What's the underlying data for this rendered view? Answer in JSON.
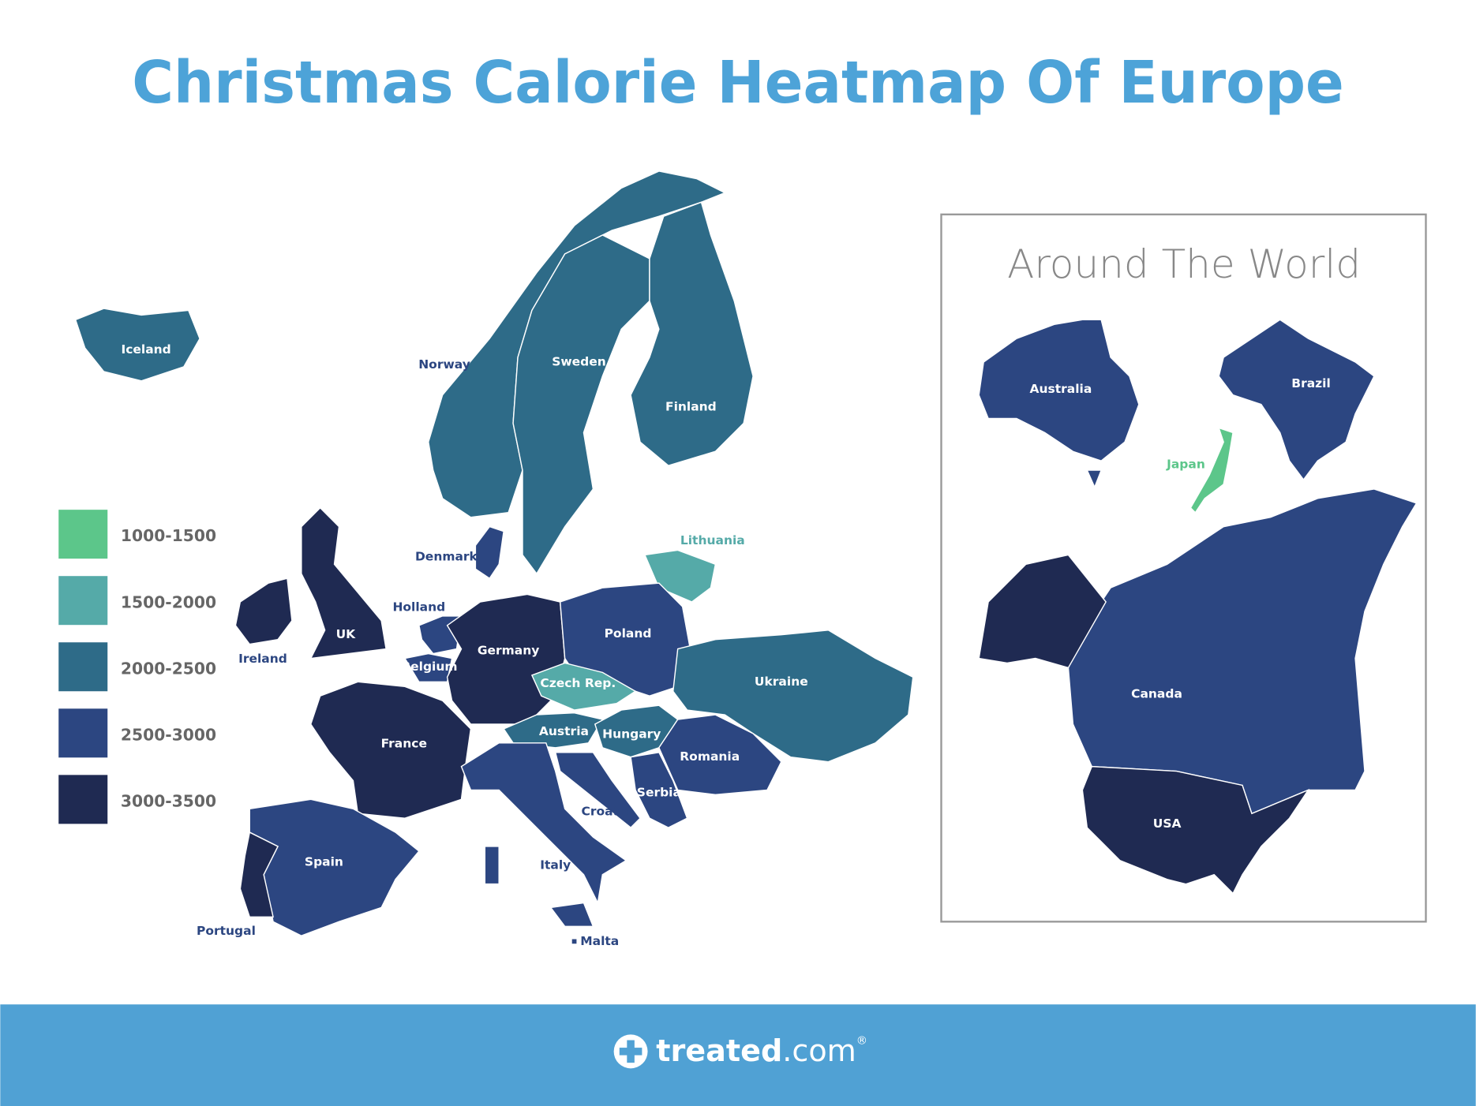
{
  "title": "Christmas Calorie Heatmap Of Europe",
  "legend": [
    {
      "label": "1000-1500",
      "color": "#5cc68a"
    },
    {
      "label": "1500-2000",
      "color": "#55aaa8"
    },
    {
      "label": "2000-2500",
      "color": "#2e6b88"
    },
    {
      "label": "2500-3000",
      "color": "#2c4681"
    },
    {
      "label": "3000-3500",
      "color": "#1f2a52"
    }
  ],
  "europe": [
    {
      "name": "Iceland",
      "color": "#2e6b88"
    },
    {
      "name": "Norway",
      "color": "#2e6b88"
    },
    {
      "name": "Sweden",
      "color": "#2e6b88"
    },
    {
      "name": "Finland",
      "color": "#2e6b88"
    },
    {
      "name": "Denmark",
      "color": "#2c4681"
    },
    {
      "name": "Lithuania",
      "color": "#55aaa8"
    },
    {
      "name": "UK",
      "color": "#1f2a52"
    },
    {
      "name": "Ireland",
      "color": "#1f2a52"
    },
    {
      "name": "Holland",
      "color": "#2c4681"
    },
    {
      "name": "Belgium",
      "color": "#2c4681"
    },
    {
      "name": "Germany",
      "color": "#1f2a52"
    },
    {
      "name": "Poland",
      "color": "#2c4681"
    },
    {
      "name": "Czech Rep.",
      "color": "#55aaa8"
    },
    {
      "name": "Ukraine",
      "color": "#2e6b88"
    },
    {
      "name": "Austria",
      "color": "#2e6b88"
    },
    {
      "name": "Hungary",
      "color": "#2e6b88"
    },
    {
      "name": "Romania",
      "color": "#2c4681"
    },
    {
      "name": "France",
      "color": "#1f2a52"
    },
    {
      "name": "Italy",
      "color": "#2c4681"
    },
    {
      "name": "Croatia",
      "color": "#2c4681"
    },
    {
      "name": "Serbia",
      "color": "#2c4681"
    },
    {
      "name": "Spain",
      "color": "#2c4681"
    },
    {
      "name": "Portugal",
      "color": "#1f2a52"
    },
    {
      "name": "Malta",
      "color": "#2c4681"
    }
  ],
  "world_title": "Around The World",
  "world": [
    {
      "name": "Australia",
      "color": "#2c4681"
    },
    {
      "name": "Brazil",
      "color": "#2c4681"
    },
    {
      "name": "Japan",
      "color": "#5cc68a"
    },
    {
      "name": "Canada",
      "color": "#2c4681"
    },
    {
      "name": "USA",
      "color": "#1f2a52"
    }
  ],
  "footer": {
    "brand": "treated",
    "domain": ".com",
    "mark": "®"
  }
}
